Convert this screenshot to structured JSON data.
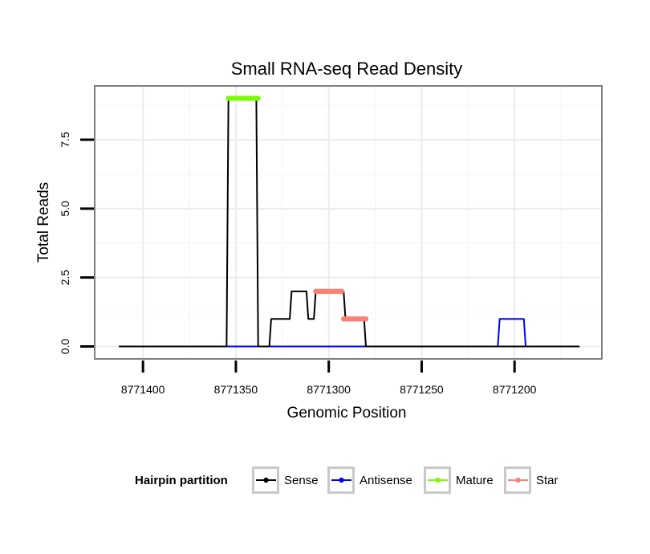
{
  "chart_data": {
    "type": "line",
    "title": "Small RNA-seq Read Density",
    "xlabel": "Genomic Position",
    "ylabel": "Total Reads",
    "x_reversed": true,
    "xlim": [
      8771426,
      8771153
    ],
    "ylim": [
      -0.45,
      9.45
    ],
    "x_ticks": [
      8771400,
      8771350,
      8771300,
      8771250,
      8771200
    ],
    "x_tick_labels": [
      "8771400",
      "8771350",
      "8771300",
      "8771250",
      "8771200"
    ],
    "y_ticks": [
      0,
      2.5,
      5,
      7.5
    ],
    "y_tick_labels": [
      "0.0",
      "2.5",
      "5.0",
      "7.5"
    ],
    "grid": true,
    "legend": {
      "title": "Hairpin partition",
      "position": "bottom",
      "entries": [
        {
          "label": "Sense",
          "color": "#000000"
        },
        {
          "label": "Antisense",
          "color": "#0000ff"
        },
        {
          "label": "Mature",
          "color": "#7cfc00"
        },
        {
          "label": "Star",
          "color": "#fa8072"
        }
      ]
    },
    "series": [
      {
        "name": "Sense",
        "color": "#000000",
        "style": "line",
        "x": [
          8771413,
          8771355,
          8771354,
          8771339,
          8771338,
          8771332,
          8771331,
          8771321,
          8771320,
          8771312,
          8771311,
          8771308,
          8771307,
          8771292,
          8771291,
          8771281,
          8771280,
          8771165
        ],
        "y": [
          0,
          0,
          9,
          9,
          0,
          0,
          1,
          1,
          2,
          2,
          1,
          1,
          2,
          2,
          1,
          1,
          0,
          0
        ]
      },
      {
        "name": "Antisense",
        "color": "#0000ff",
        "style": "line",
        "x": [
          8771355,
          8771209,
          8771208,
          8771195,
          8771194,
          8771190
        ],
        "y": [
          0,
          0,
          1,
          1,
          0,
          0
        ]
      },
      {
        "name": "Mature",
        "color": "#7cfc00",
        "style": "points",
        "x_range": [
          8771354,
          8771338
        ],
        "y": 9
      },
      {
        "name": "Star",
        "color": "#fa8072",
        "style": "points",
        "segments": [
          {
            "x_range": [
              8771307,
              8771293
            ],
            "y": 2
          },
          {
            "x_range": [
              8771292,
              8771280
            ],
            "y": 1
          }
        ]
      }
    ]
  }
}
